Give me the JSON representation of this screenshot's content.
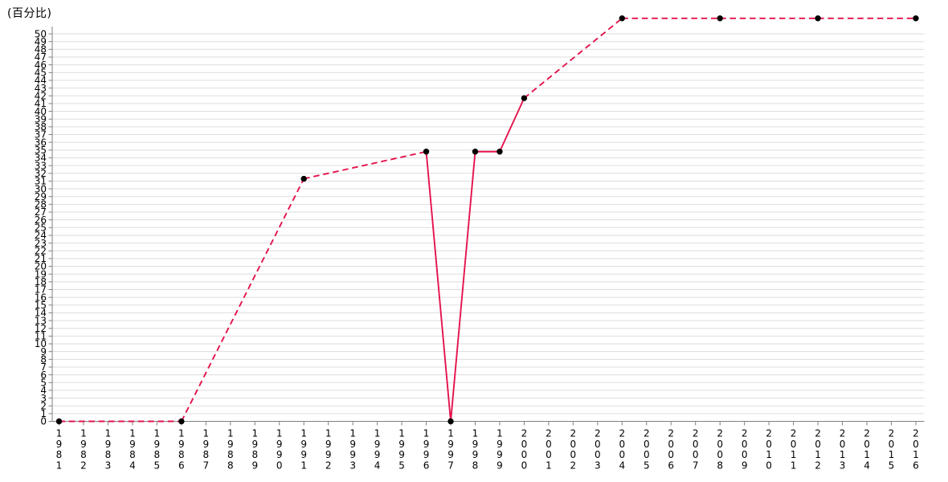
{
  "chart_data": {
    "type": "line",
    "title": "",
    "ylabel": "(百分比)",
    "xlabel": "",
    "x_categories": [
      "1981",
      "1982",
      "1983",
      "1984",
      "1985",
      "1986",
      "1987",
      "1988",
      "1989",
      "1990",
      "1991",
      "1992",
      "1993",
      "1994",
      "1995",
      "1996",
      "1997",
      "1998",
      "1999",
      "2000",
      "2001",
      "2002",
      "2003",
      "2004",
      "2005",
      "2006",
      "2007",
      "2008",
      "2009",
      "2010",
      "2011",
      "2012",
      "2013",
      "2014",
      "2015",
      "2016"
    ],
    "y_axis": {
      "min": 0,
      "max": 50,
      "step": 1
    },
    "render_ylim": [
      0,
      52.5
    ],
    "grid": true,
    "legend": false,
    "colors": {
      "line": "#e4134c",
      "marker": "#000000",
      "grid": "#dddddd",
      "axis": "#808080",
      "text": "#000000"
    },
    "series": [
      {
        "name": "百分比",
        "points": [
          {
            "x": "1981",
            "y": 0
          },
          {
            "x": "1986",
            "y": 0
          },
          {
            "x": "1991",
            "y": 31.3
          },
          {
            "x": "1996",
            "y": 34.8
          },
          {
            "x": "1997",
            "y": 0
          },
          {
            "x": "1998",
            "y": 34.8
          },
          {
            "x": "1999",
            "y": 34.8
          },
          {
            "x": "2000",
            "y": 41.7
          },
          {
            "x": "2004",
            "y": 52
          },
          {
            "x": "2008",
            "y": 52
          },
          {
            "x": "2012",
            "y": 52
          },
          {
            "x": "2016",
            "y": 52
          }
        ],
        "segment_styles": [
          "dashed",
          "dashed",
          "dashed",
          "solid",
          "solid",
          "solid",
          "solid",
          "dashed",
          "dashed",
          "dashed",
          "dashed"
        ]
      }
    ]
  }
}
